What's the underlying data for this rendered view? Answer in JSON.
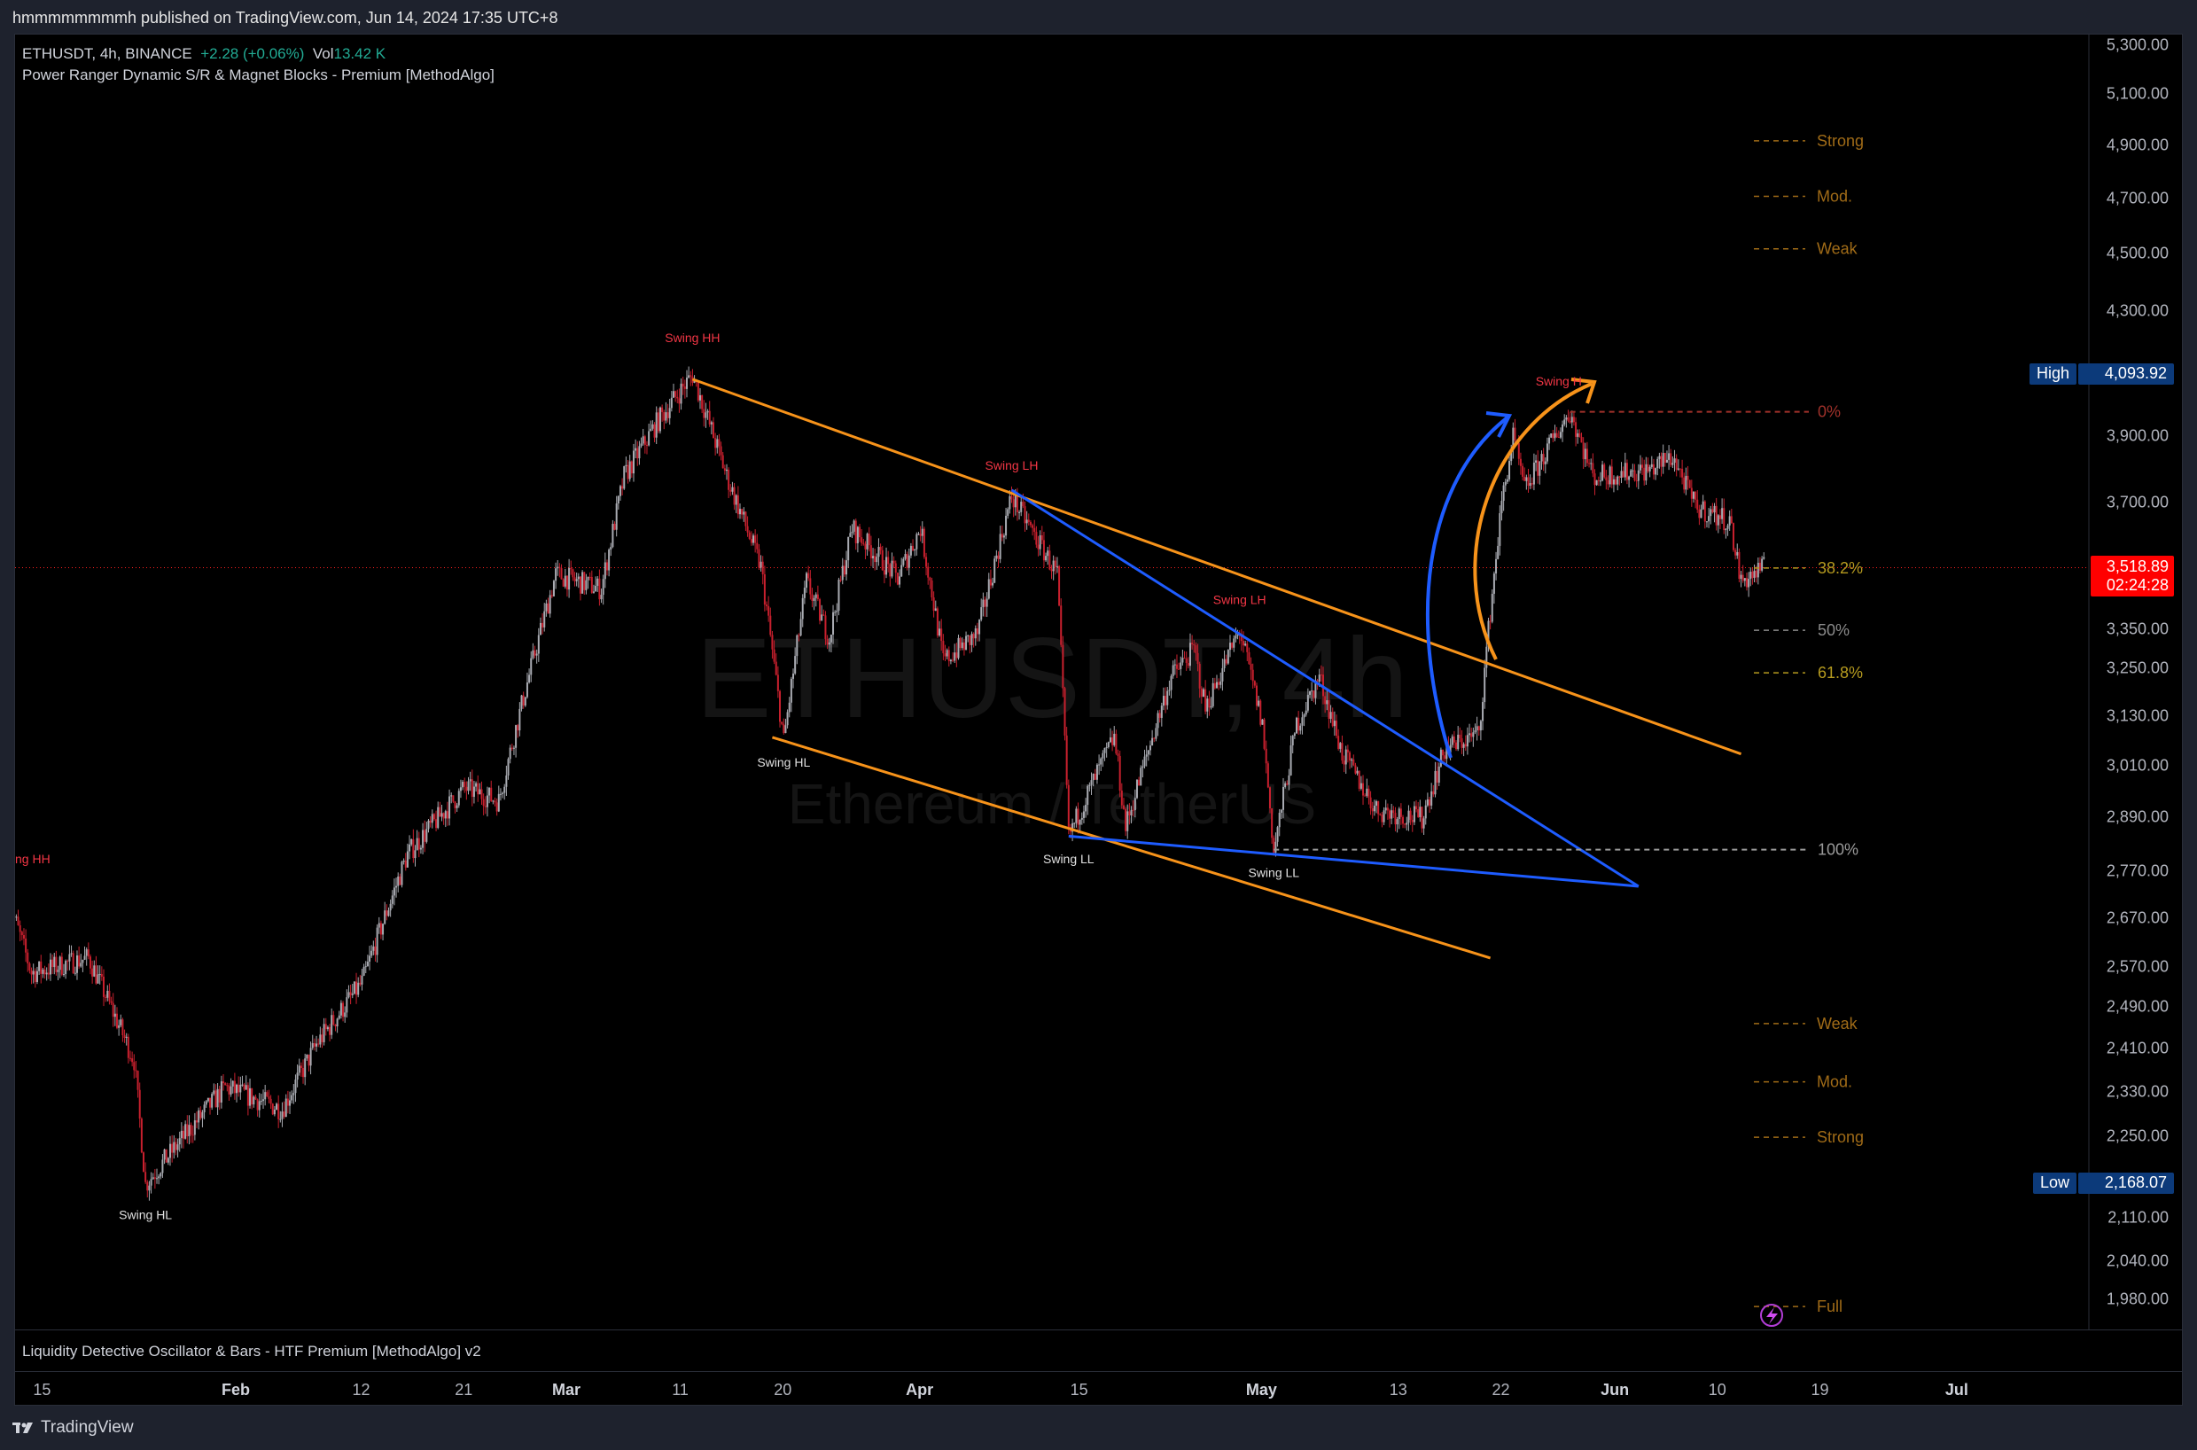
{
  "publish_line": "hmmmmmmmmh published on TradingView.com, Jun 14, 2024 17:35 UTC+8",
  "legend": {
    "symbol": "ETHUSDT, 4h, BINANCE",
    "change": "+2.28 (+0.06%)",
    "vol_label": "Vol",
    "vol_value": "13.42 K",
    "indicator": "Power Ranger Dynamic S/R & Magnet Blocks - Premium [MethodAlgo]"
  },
  "watermark": {
    "line1": "ETHUSDT, 4h",
    "line2": "Ethereum / TetherUS"
  },
  "oscillator_label": "Liquidity Detective Oscillator & Bars - HTF Premium [MethodAlgo] v2",
  "footer_brand": "TradingView",
  "colors": {
    "up": "#a9abb2",
    "down": "#c8202e",
    "orange": "#f7931a",
    "blue": "#1e5cff",
    "swing_high": "#f23645",
    "swing_low": "#e0e0e0",
    "fib_text": "#a06b17",
    "gold": "#b59a1f"
  },
  "chart_data": {
    "type": "candlestick",
    "symbol": "ETHUSDT",
    "interval": "4h",
    "y_scale": "log",
    "ylim": [
      1950,
      5350
    ],
    "xlim": [
      "2024-01-13",
      "2024-07-05"
    ],
    "price_ticks": [
      "5,300.00",
      "5,100.00",
      "4,900.00",
      "4,700.00",
      "4,500.00",
      "4,300.00",
      "3,900.00",
      "3,700.00",
      "3,350.00",
      "3,250.00",
      "3,130.00",
      "3,010.00",
      "2,890.00",
      "2,770.00",
      "2,670.00",
      "2,570.00",
      "2,490.00",
      "2,410.00",
      "2,330.00",
      "2,250.00",
      "2,110.00",
      "2,040.00",
      "1,980.00"
    ],
    "time_ticks": [
      {
        "label": "15",
        "date": "2024-01-15",
        "bold": false
      },
      {
        "label": "Feb",
        "date": "2024-02-01",
        "bold": true
      },
      {
        "label": "12",
        "date": "2024-02-12",
        "bold": false
      },
      {
        "label": "21",
        "date": "2024-02-21",
        "bold": false
      },
      {
        "label": "Mar",
        "date": "2024-03-01",
        "bold": true
      },
      {
        "label": "11",
        "date": "2024-03-11",
        "bold": false
      },
      {
        "label": "20",
        "date": "2024-03-20",
        "bold": false
      },
      {
        "label": "Apr",
        "date": "2024-04-01",
        "bold": true
      },
      {
        "label": "15",
        "date": "2024-04-15",
        "bold": false
      },
      {
        "label": "May",
        "date": "2024-05-01",
        "bold": true
      },
      {
        "label": "13",
        "date": "2024-05-13",
        "bold": false
      },
      {
        "label": "22",
        "date": "2024-05-22",
        "bold": false
      },
      {
        "label": "Jun",
        "date": "2024-06-01",
        "bold": true
      },
      {
        "label": "10",
        "date": "2024-06-10",
        "bold": false
      },
      {
        "label": "19",
        "date": "2024-06-19",
        "bold": false
      },
      {
        "label": "Jul",
        "date": "2024-07-01",
        "bold": true
      }
    ],
    "price_path": [
      [
        "2024-01-12",
        2710
      ],
      [
        "2024-01-14",
        2560
      ],
      [
        "2024-01-19",
        2590
      ],
      [
        "2024-01-23",
        2390
      ],
      [
        "2024-01-24",
        2168.07
      ],
      [
        "2024-01-31",
        2340
      ],
      [
        "2024-02-05",
        2300
      ],
      [
        "2024-02-08",
        2420
      ],
      [
        "2024-02-12",
        2540
      ],
      [
        "2024-02-16",
        2810
      ],
      [
        "2024-02-21",
        2960
      ],
      [
        "2024-02-24",
        2930
      ],
      [
        "2024-02-29",
        3500
      ],
      [
        "2024-03-04",
        3460
      ],
      [
        "2024-03-06",
        3780
      ],
      [
        "2024-03-09",
        3950
      ],
      [
        "2024-03-12",
        4093.92
      ],
      [
        "2024-03-15",
        3780
      ],
      [
        "2024-03-18",
        3520
      ],
      [
        "2024-03-20",
        3070
      ],
      [
        "2024-03-22",
        3480
      ],
      [
        "2024-03-24",
        3330
      ],
      [
        "2024-03-26",
        3630
      ],
      [
        "2024-03-30",
        3490
      ],
      [
        "2024-04-01",
        3630
      ],
      [
        "2024-04-03",
        3270
      ],
      [
        "2024-04-06",
        3340
      ],
      [
        "2024-04-09",
        3720
      ],
      [
        "2024-04-13",
        3500
      ],
      [
        "2024-04-14",
        2850
      ],
      [
        "2024-04-18",
        3080
      ],
      [
        "2024-04-19",
        2870
      ],
      [
        "2024-04-23",
        3230
      ],
      [
        "2024-04-25",
        3300
      ],
      [
        "2024-04-26",
        3150
      ],
      [
        "2024-04-29",
        3350
      ],
      [
        "2024-05-01",
        3110
      ],
      [
        "2024-05-02",
        2815
      ],
      [
        "2024-05-04",
        3110
      ],
      [
        "2024-05-06",
        3230
      ],
      [
        "2024-05-08",
        3040
      ],
      [
        "2024-05-11",
        2910
      ],
      [
        "2024-05-15",
        2890
      ],
      [
        "2024-05-17",
        3050
      ],
      [
        "2024-05-20",
        3090
      ],
      [
        "2024-05-21",
        3400
      ],
      [
        "2024-05-22",
        3700
      ],
      [
        "2024-05-23",
        3900
      ],
      [
        "2024-05-24",
        3740
      ],
      [
        "2024-05-27",
        3920
      ],
      [
        "2024-05-28",
        3977
      ],
      [
        "2024-05-30",
        3780
      ],
      [
        "2024-06-04",
        3800
      ],
      [
        "2024-06-06",
        3840
      ],
      [
        "2024-06-08",
        3690
      ],
      [
        "2024-06-11",
        3650
      ],
      [
        "2024-06-12",
        3480
      ],
      [
        "2024-06-14",
        3518.89
      ]
    ],
    "high": {
      "label": "High",
      "value": "4,093.92",
      "price": 4093.92
    },
    "low": {
      "label": "Low",
      "value": "2,168.07",
      "price": 2168.07
    },
    "last": {
      "value": "3,518.89",
      "countdown": "02:24:28",
      "price": 3518.89
    },
    "swing_labels": [
      {
        "text": "ng HH",
        "date": "2024-01-13",
        "price": 2790,
        "kind": "high"
      },
      {
        "text": "Swing HL",
        "date": "2024-01-24",
        "price": 2110,
        "kind": "low"
      },
      {
        "text": "Swing HH",
        "date": "2024-03-12",
        "price": 4200,
        "kind": "high"
      },
      {
        "text": "Swing HL",
        "date": "2024-03-20",
        "price": 3010,
        "kind": "low"
      },
      {
        "text": "Swing LH",
        "date": "2024-04-09",
        "price": 3800,
        "kind": "high"
      },
      {
        "text": "Swing LL",
        "date": "2024-04-14",
        "price": 2790,
        "kind": "low"
      },
      {
        "text": "Swing LH",
        "date": "2024-04-29",
        "price": 3420,
        "kind": "high"
      },
      {
        "text": "Swing LL",
        "date": "2024-05-02",
        "price": 2760,
        "kind": "low"
      },
      {
        "text": "Swing H",
        "date": "2024-05-27",
        "price": 4060,
        "kind": "high"
      }
    ],
    "trendlines": [
      {
        "color": "orange",
        "from": [
          "2024-03-12",
          4080
        ],
        "to": [
          "2024-06-12",
          3040
        ]
      },
      {
        "color": "orange",
        "from": [
          "2024-03-19",
          3080
        ],
        "to": [
          "2024-05-21",
          2590
        ]
      },
      {
        "color": "blue",
        "from": [
          "2024-04-09",
          3740
        ],
        "to": [
          "2024-06-03",
          2740
        ]
      },
      {
        "color": "blue",
        "from": [
          "2024-04-14",
          2850
        ],
        "to": [
          "2024-06-03",
          2740
        ]
      }
    ],
    "fib_levels": [
      {
        "label": "0%",
        "price": 3977,
        "color": "#a0312a",
        "line": true,
        "from": "2024-05-28"
      },
      {
        "label": "38.2%",
        "price": 3518,
        "color": "#b59a1f",
        "line": false
      },
      {
        "label": "50%",
        "price": 3350,
        "color": "#8a8a8a",
        "line": false
      },
      {
        "label": "61.8%",
        "price": 3240,
        "color": "#b59a1f",
        "line": false
      },
      {
        "label": "100%",
        "price": 2820,
        "color": "#9a9a9a",
        "line": true,
        "from": "2024-05-02"
      }
    ],
    "zones": [
      {
        "label": "Strong",
        "price": 4920
      },
      {
        "label": "Mod.",
        "price": 4710
      },
      {
        "label": "Weak",
        "price": 4520
      },
      {
        "label": "Weak",
        "price": 2460
      },
      {
        "label": "Mod.",
        "price": 2350
      },
      {
        "label": "Strong",
        "price": 2250
      },
      {
        "label": "Full",
        "price": 1970
      }
    ]
  }
}
